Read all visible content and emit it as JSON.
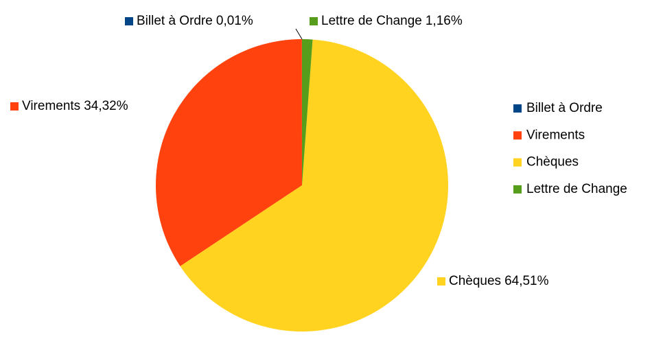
{
  "chart_data": {
    "type": "pie",
    "categories": [
      "Billet à Ordre",
      "Virements",
      "Chèques",
      "Lettre de Change"
    ],
    "values": [
      0.01,
      34.32,
      64.51,
      1.16
    ],
    "value_labels": [
      "0,01%",
      "34,32%",
      "64,51%",
      "1,16%"
    ],
    "colors": [
      "#004586",
      "#ff420e",
      "#ffd320",
      "#579d1c"
    ],
    "legend": "right"
  }
}
